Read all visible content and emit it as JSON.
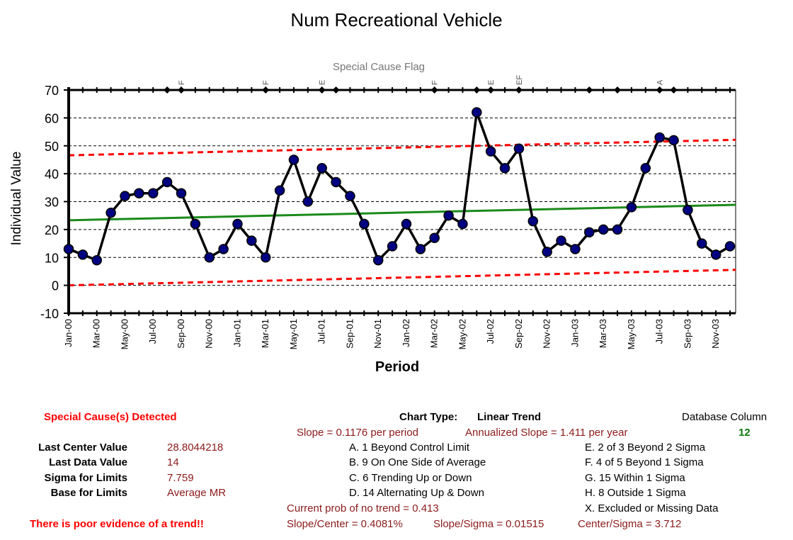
{
  "chart_data": {
    "type": "line",
    "title": "Num Recreational Vehicle",
    "xlabel": "Period",
    "ylabel": "Individual Value",
    "flag_axis_label": "Special Cause Flag",
    "ylim": [
      -10,
      70
    ],
    "yticks": [
      -10,
      0,
      10,
      20,
      30,
      40,
      50,
      60,
      70
    ],
    "grid": true,
    "x_tick_labels": [
      "Jan-00",
      "Mar-00",
      "May-00",
      "Jul-00",
      "Sep-00",
      "Nov-00",
      "Jan-01",
      "Mar-01",
      "May-01",
      "Jul-01",
      "Sep-01",
      "Nov-01",
      "Jan-02",
      "Mar-02",
      "May-02",
      "Jul-02",
      "Sep-02",
      "Nov-02",
      "Jan-03",
      "Mar-03",
      "May-03",
      "Jul-03",
      "Sep-03",
      "Nov-03"
    ],
    "periods": [
      "Jan-00",
      "Feb-00",
      "Mar-00",
      "Apr-00",
      "May-00",
      "Jun-00",
      "Jul-00",
      "Aug-00",
      "Sep-00",
      "Oct-00",
      "Nov-00",
      "Dec-00",
      "Jan-01",
      "Feb-01",
      "Mar-01",
      "Apr-01",
      "May-01",
      "Jun-01",
      "Jul-01",
      "Aug-01",
      "Sep-01",
      "Oct-01",
      "Nov-01",
      "Dec-01",
      "Jan-02",
      "Feb-02",
      "Mar-02",
      "Apr-02",
      "May-02",
      "Jun-02",
      "Jul-02",
      "Aug-02",
      "Sep-02",
      "Oct-02",
      "Nov-02",
      "Dec-02",
      "Jan-03",
      "Feb-03",
      "Mar-03",
      "Apr-03",
      "May-03",
      "Jun-03",
      "Jul-03",
      "Aug-03",
      "Sep-03",
      "Oct-03",
      "Nov-03",
      "Dec-03"
    ],
    "series": [
      {
        "values": [
          13,
          11,
          9,
          26,
          32,
          33,
          33,
          37,
          33,
          22,
          10,
          13,
          22,
          16,
          10,
          34,
          45,
          30,
          42,
          37,
          32,
          22,
          9,
          14,
          22,
          13,
          17,
          25,
          22,
          62,
          48,
          42,
          49,
          23,
          12,
          16,
          13,
          19,
          20,
          20,
          28,
          42,
          53,
          52,
          27,
          15,
          11,
          14
        ],
        "color": "#000000",
        "marker_color": "#000080"
      }
    ],
    "center_line": {
      "start": 23.3,
      "end": 28.8,
      "color": "#1a8a1a"
    },
    "upper_limit": {
      "start": 46.6,
      "end": 52.1,
      "color": "#ff0000"
    },
    "lower_limit": {
      "start": 0.0,
      "end": 5.5,
      "color": "#ff0000"
    },
    "special_cause_marks": [
      7,
      8,
      14,
      18,
      19,
      26,
      29,
      30,
      32,
      37,
      39,
      42,
      43
    ],
    "special_cause_labels": [
      {
        "period": 8,
        "text": "F"
      },
      {
        "period": 14,
        "text": "F"
      },
      {
        "period": 18,
        "text": "E"
      },
      {
        "period": 26,
        "text": "F"
      },
      {
        "period": 30,
        "text": "E"
      },
      {
        "period": 32,
        "text": "EF"
      },
      {
        "period": 42,
        "text": "A"
      }
    ]
  },
  "summary": {
    "special_cause_heading": "Special Cause(s) Detected",
    "chart_type_label": "Chart Type:",
    "chart_type_value": "Linear Trend",
    "database_column_label": "Database Column",
    "database_column_value": "12",
    "slope_text": "Slope = 0.1176 per period",
    "annualized_slope_text": "Annualized Slope = 1.411 per year",
    "last_center_label": "Last Center Value",
    "last_center_value": "28.8044218",
    "last_data_label": "Last Data Value",
    "last_data_value": "14",
    "sigma_label": "Sigma for Limits",
    "sigma_value": "7.759",
    "base_label": "Base for Limits",
    "base_value": "Average MR",
    "rules_left": [
      "A. 1 Beyond Control Limit",
      "B. 9 On One Side of Average",
      "C. 6 Trending Up or Down",
      "D. 14 Alternating  Up & Down"
    ],
    "rules_right": [
      "E.  2 of 3 Beyond 2 Sigma",
      "F.  4 of 5 Beyond 1 Sigma",
      "G.  15 Within 1 Sigma",
      "H.  8 Outside 1 Sigma",
      "X.  Excluded or Missing Data"
    ],
    "prob_text": "Current prob of no trend = 0.413",
    "slope_center_text": "Slope/Center = 0.4081%",
    "slope_sigma_text": "Slope/Sigma = 0.01515",
    "center_sigma_text": "Center/Sigma = 3.712",
    "trend_verdict": "There is poor evidence of a trend!!"
  }
}
